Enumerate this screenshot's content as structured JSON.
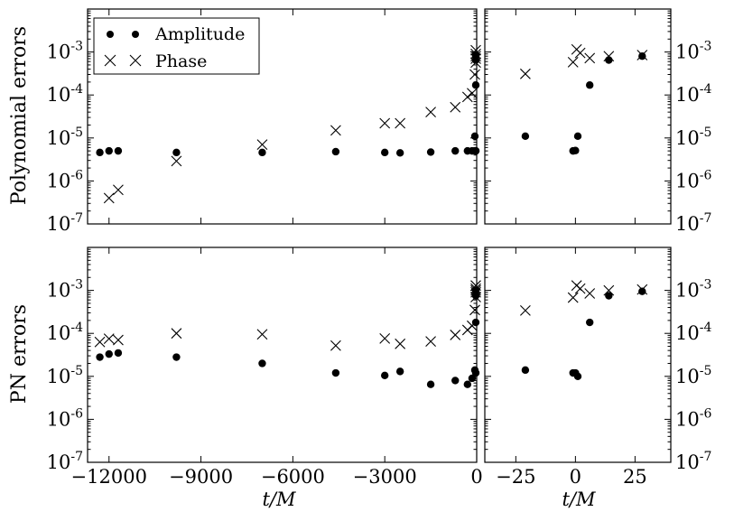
{
  "chart_data": {
    "type": "scatter",
    "scale": "log",
    "yticks": [
      1e-07,
      1e-06,
      1e-05,
      0.0001,
      0.001
    ],
    "ytick_labels": [
      "10",
      "10",
      "10",
      "10",
      "10"
    ],
    "ytick_exponents": [
      "-7",
      "-6",
      "-5",
      "-4",
      "-3"
    ],
    "ylim": [
      1e-07,
      0.01
    ],
    "xlabel": "t/M",
    "legend": {
      "location": "top-left",
      "entries": [
        "Amplitude",
        "Phase"
      ]
    },
    "panels": [
      {
        "row": "top",
        "ylabel": "Polynomial errors",
        "left": {
          "xlim": [
            -12700,
            0
          ],
          "xticks": [
            -12000,
            -9000,
            -6000,
            -3000,
            0
          ],
          "xtick_labels": [
            "",
            "",
            "",
            "",
            ""
          ],
          "series": [
            {
              "name": "Amplitude",
              "marker": "dot",
              "points": [
                [
                  -12300,
                  4.6e-06
                ],
                [
                  -12000,
                  5e-06
                ],
                [
                  -11700,
                  5e-06
                ],
                [
                  -9800,
                  4.6e-06
                ],
                [
                  -7000,
                  4.6e-06
                ],
                [
                  -4600,
                  4.8e-06
                ],
                [
                  -3000,
                  4.6e-06
                ],
                [
                  -2500,
                  4.5e-06
                ],
                [
                  -1500,
                  4.7e-06
                ],
                [
                  -700,
                  5e-06
                ],
                [
                  -300,
                  5e-06
                ],
                [
                  -150,
                  5e-06
                ],
                [
                  -60,
                  1.1e-05
                ],
                [
                  -25,
                  5e-06
                ],
                [
                  -10,
                  5e-06
                ],
                [
                  -5,
                  0.00017
                ],
                [
                  0,
                  0.00065
                ],
                [
                  10,
                  0.0008
                ],
                [
                  20,
                  0.00085
                ]
              ]
            },
            {
              "name": "Phase",
              "marker": "x",
              "points": [
                [
                  -12000,
                  4e-07
                ],
                [
                  -11700,
                  6.2e-07
                ],
                [
                  -9800,
                  2.9e-06
                ],
                [
                  -7000,
                  7e-06
                ],
                [
                  -4600,
                  1.5e-05
                ],
                [
                  -3000,
                  2.2e-05
                ],
                [
                  -2500,
                  2.2e-05
                ],
                [
                  -1500,
                  4e-05
                ],
                [
                  -700,
                  5.2e-05
                ],
                [
                  -300,
                  9e-05
                ],
                [
                  -150,
                  0.00011
                ],
                [
                  -60,
                  0.0003
                ],
                [
                  -20,
                  0.00057
                ],
                [
                  -5,
                  0.0007
                ],
                [
                  5,
                  0.0011
                ],
                [
                  15,
                  0.0009
                ],
                [
                  25,
                  0.0008
                ]
              ]
            }
          ]
        },
        "right": {
          "xlim": [
            -38,
            40
          ],
          "xticks": [
            -25,
            0,
            25
          ],
          "xtick_labels": [
            "",
            "",
            ""
          ],
          "series": [
            {
              "name": "Amplitude",
              "marker": "dot",
              "points": [
                [
                  -21,
                  1.1e-05
                ],
                [
                  -1,
                  5e-06
                ],
                [
                  0,
                  5.1e-06
                ],
                [
                  1,
                  1.1e-05
                ],
                [
                  6,
                  0.00017
                ],
                [
                  14,
                  0.00065
                ],
                [
                  28,
                  0.0008
                ]
              ]
            },
            {
              "name": "Phase",
              "marker": "x",
              "points": [
                [
                  -21,
                  0.00031
                ],
                [
                  -1,
                  0.00058
                ],
                [
                  0.5,
                  0.00115
                ],
                [
                  2,
                  0.00095
                ],
                [
                  6,
                  0.00072
                ],
                [
                  14,
                  0.0008
                ],
                [
                  28,
                  0.00085
                ]
              ]
            }
          ]
        }
      },
      {
        "row": "bottom",
        "ylabel": "PN errors",
        "left": {
          "xlim": [
            -12700,
            0
          ],
          "xticks": [
            -12000,
            -9000,
            -6000,
            -3000,
            0
          ],
          "xtick_labels": [
            "−12000",
            "−9000",
            "−6000",
            "−3000",
            "0"
          ],
          "series": [
            {
              "name": "Amplitude",
              "marker": "dot",
              "points": [
                [
                  -12300,
                  2.8e-05
                ],
                [
                  -12000,
                  3.3e-05
                ],
                [
                  -11700,
                  3.5e-05
                ],
                [
                  -9800,
                  2.8e-05
                ],
                [
                  -7000,
                  2e-05
                ],
                [
                  -4600,
                  1.2e-05
                ],
                [
                  -3000,
                  1.05e-05
                ],
                [
                  -2500,
                  1.3e-05
                ],
                [
                  -1500,
                  6.5e-06
                ],
                [
                  -700,
                  8e-06
                ],
                [
                  -300,
                  6.5e-06
                ],
                [
                  -150,
                  9e-06
                ],
                [
                  -60,
                  1.4e-05
                ],
                [
                  -25,
                  1.2e-05
                ],
                [
                  -10,
                  0.00018
                ],
                [
                  0,
                  0.00075
                ],
                [
                  10,
                  0.0008
                ],
                [
                  20,
                  0.001
                ]
              ]
            },
            {
              "name": "Phase",
              "marker": "x",
              "points": [
                [
                  -12300,
                  6.3e-05
                ],
                [
                  -12000,
                  7.5e-05
                ],
                [
                  -11700,
                  7e-05
                ],
                [
                  -9800,
                  0.0001
                ],
                [
                  -7000,
                  9.5e-05
                ],
                [
                  -4600,
                  5.2e-05
                ],
                [
                  -3000,
                  7.6e-05
                ],
                [
                  -2500,
                  5.7e-05
                ],
                [
                  -1500,
                  6.5e-05
                ],
                [
                  -700,
                  9.2e-05
                ],
                [
                  -300,
                  0.00012
                ],
                [
                  -150,
                  0.00015
                ],
                [
                  -60,
                  0.00035
                ],
                [
                  -20,
                  0.0007
                ],
                [
                  -5,
                  0.0009
                ],
                [
                  5,
                  0.0013
                ],
                [
                  15,
                  0.0011
                ],
                [
                  25,
                  0.001
                ]
              ]
            }
          ]
        },
        "right": {
          "xlim": [
            -38,
            40
          ],
          "xticks": [
            -25,
            0,
            25
          ],
          "xtick_labels": [
            "−25",
            "0",
            "25"
          ],
          "series": [
            {
              "name": "Amplitude",
              "marker": "dot",
              "points": [
                [
                  -21,
                  1.4e-05
                ],
                [
                  -1,
                  1.2e-05
                ],
                [
                  0,
                  1.2e-05
                ],
                [
                  1,
                  1e-05
                ],
                [
                  6,
                  0.00018
                ],
                [
                  14,
                  0.00075
                ],
                [
                  28,
                  0.00095
                ]
              ]
            },
            {
              "name": "Phase",
              "marker": "x",
              "points": [
                [
                  -21,
                  0.00034
                ],
                [
                  -1,
                  0.00068
                ],
                [
                  0.5,
                  0.0013
                ],
                [
                  2,
                  0.0011
                ],
                [
                  6,
                  0.00085
                ],
                [
                  14,
                  0.001
                ],
                [
                  28,
                  0.00105
                ]
              ]
            }
          ]
        }
      }
    ]
  }
}
